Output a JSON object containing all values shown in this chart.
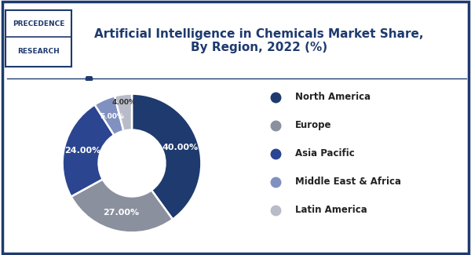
{
  "title": "Artificial Intelligence in Chemicals Market Share,\nBy Region, 2022 (%)",
  "segments": [
    "North America",
    "Europe",
    "Asia Pacific",
    "Middle East & Africa",
    "Latin America"
  ],
  "values": [
    40,
    27,
    24,
    5,
    4
  ],
  "colors": [
    "#1e3a6e",
    "#8b909e",
    "#2b4590",
    "#8090c0",
    "#b8bcc8"
  ],
  "labels": [
    "40.00%",
    "27.00%",
    "24.00%",
    "5.00%",
    "4.00%"
  ],
  "background_color": "#ffffff",
  "border_color": "#1e3a6e",
  "title_color": "#1e3a6e",
  "logo_text_line1": "PRECEDENCE",
  "logo_text_line2": "RESEARCH",
  "logo_bg": "#ffffff",
  "logo_border_color": "#1e3a6e",
  "logo_text_color": "#1e3a6e",
  "wedge_text_color": "#ffffff",
  "startangle": 90,
  "legend_fontsize": 8.5,
  "title_fontsize": 11
}
